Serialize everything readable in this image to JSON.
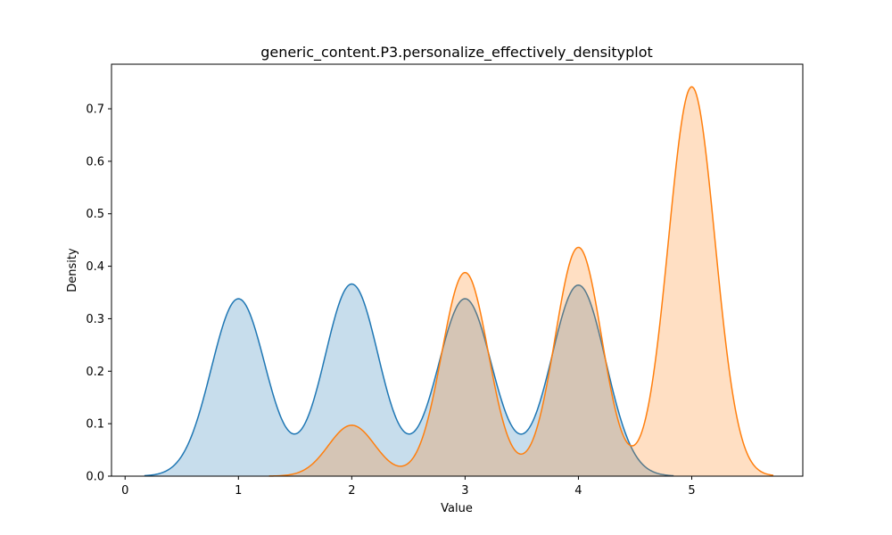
{
  "chart_data": {
    "type": "area",
    "title": "generic_content.P3.personalize_effectively_densityplot",
    "xlabel": "Value",
    "ylabel": "Density",
    "xlim": [
      -0.12,
      5.98
    ],
    "ylim": [
      0,
      0.785
    ],
    "xticks": [
      "0",
      "1",
      "2",
      "3",
      "4",
      "5"
    ],
    "yticks": [
      "0.0",
      "0.1",
      "0.2",
      "0.3",
      "0.4",
      "0.5",
      "0.6",
      "0.7"
    ],
    "grid": false,
    "legend": "none",
    "series": [
      {
        "color": "#1f77b4",
        "fill_opacity": 0.25,
        "x_range": [
          0.17,
          4.84
        ],
        "components": [
          {
            "mu": 1,
            "amp": 0.338
          },
          {
            "mu": 2,
            "amp": 0.366
          },
          {
            "mu": 3,
            "amp": 0.338
          },
          {
            "mu": 4,
            "amp": 0.364
          }
        ],
        "sigma": 0.24
      },
      {
        "color": "#ff7f0e",
        "fill_opacity": 0.25,
        "x_range": [
          1.27,
          5.72
        ],
        "components": [
          {
            "mu": 2,
            "amp": 0.097
          },
          {
            "mu": 3,
            "amp": 0.388
          },
          {
            "mu": 4,
            "amp": 0.436
          },
          {
            "mu": 5,
            "amp": 0.742
          }
        ],
        "sigma": 0.205
      }
    ]
  }
}
